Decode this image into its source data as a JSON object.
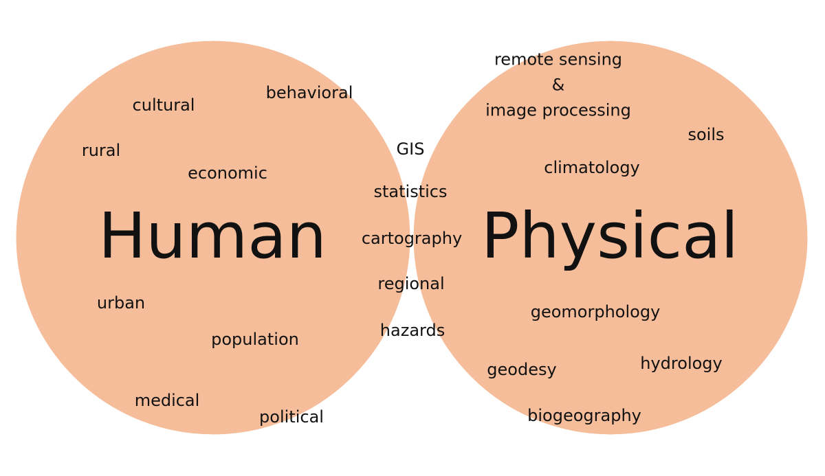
{
  "colors": {
    "circle_fill": "#f5bd9a",
    "overlap_fill": "#f09e69",
    "outline": "#ffffff",
    "text": "#111111"
  },
  "human": {
    "title": "Human",
    "terms": {
      "cultural": "cultural",
      "behavioral": "behavioral",
      "rural": "rural",
      "economic": "economic",
      "urban": "urban",
      "population": "population",
      "medical": "medical",
      "political": "political"
    }
  },
  "physical": {
    "title": "Physical",
    "terms": {
      "remote_sensing_line1": "remote sensing",
      "remote_sensing_line2": "&",
      "remote_sensing_line3": "image processing",
      "soils": "soils",
      "climatology": "climatology",
      "geomorphology": "geomorphology",
      "geodesy": "geodesy",
      "hydrology": "hydrology",
      "biogeography": "biogeography"
    }
  },
  "overlap": {
    "terms": {
      "gis": "GIS",
      "statistics": "statistics",
      "cartography": "cartography",
      "regional": "regional",
      "hazards": "hazards"
    }
  }
}
